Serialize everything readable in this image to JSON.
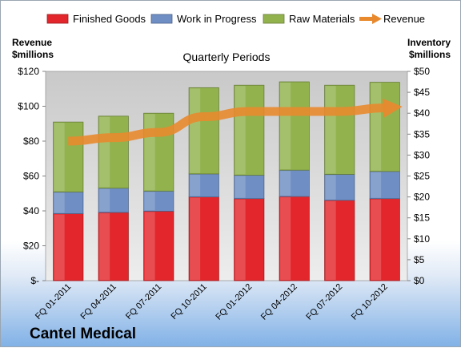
{
  "company": "Cantel Medical",
  "chart_data": {
    "type": "bar",
    "subtitle": "Quarterly Periods",
    "ylabel_left": [
      "Revenue",
      "$millions"
    ],
    "ylabel_right": [
      "Inventory",
      "$millions"
    ],
    "categories": [
      "FQ 01-2011",
      "FQ 04-2011",
      "FQ 07-2011",
      "FQ 10-2011",
      "FQ 01-2012",
      "FQ 04-2012",
      "FQ 07-2012",
      "FQ 10-2012"
    ],
    "ylim_left": [
      0,
      120
    ],
    "ylim_right": [
      0,
      50
    ],
    "left_ticks": [
      "$-",
      "$20",
      "$40",
      "$60",
      "$80",
      "$100",
      "$120"
    ],
    "right_ticks": [
      "$0",
      "$5",
      "$10",
      "$15",
      "$20",
      "$25",
      "$30",
      "$35",
      "$40",
      "$45",
      "$50"
    ],
    "stacked": true,
    "legend_position": "top",
    "grid": false,
    "series": [
      {
        "name": "Finished Goods",
        "axis": "right",
        "kind": "bar",
        "color": "#e3262b",
        "values": [
          16,
          16.3,
          16.6,
          20,
          19.6,
          20.1,
          19.2,
          19.6
        ]
      },
      {
        "name": "Work in Progress",
        "axis": "right",
        "kind": "bar",
        "color": "#6e8ec4",
        "values": [
          5.2,
          5.8,
          4.8,
          5.5,
          5.6,
          6.3,
          6.2,
          6.5
        ]
      },
      {
        "name": "Raw Materials",
        "axis": "right",
        "kind": "bar",
        "color": "#92b24e",
        "values": [
          16.7,
          17.2,
          18.6,
          20.6,
          21.5,
          21.1,
          21.3,
          21.3
        ]
      },
      {
        "name": "Revenue",
        "axis": "left",
        "kind": "line",
        "color": "#e8892e",
        "values": [
          80,
          82,
          85,
          94,
          97,
          97,
          97,
          99
        ]
      }
    ]
  }
}
